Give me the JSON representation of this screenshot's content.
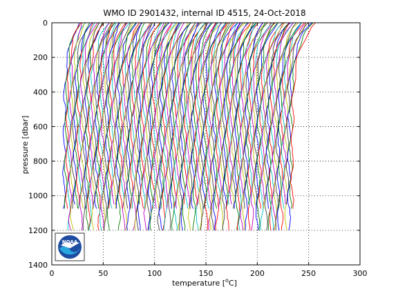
{
  "chart_data": {
    "type": "line",
    "title": "WMO ID 2901432, internal ID 4515, 24-Oct-2018",
    "xlabel": "temperature [",
    "xlabel_unit": "o",
    "xlabel_suffix": "C]",
    "ylabel": "pressure [dbar]",
    "xlim": [
      0,
      300
    ],
    "ylim": [
      0,
      1400
    ],
    "y_reversed": true,
    "grid": true,
    "xticks": [
      "0",
      "50",
      "100",
      "150",
      "200",
      "250",
      "300"
    ],
    "yticks": [
      "0",
      "200",
      "400",
      "600",
      "800",
      "1000",
      "1200",
      "1400"
    ],
    "series_colors": [
      "#0000ff",
      "#008000",
      "#ff0000",
      "#00bfbf",
      "#bf00bf",
      "#bfbf00",
      "#404040"
    ],
    "profiles": {
      "count": 150,
      "first_deep_temperature": 12,
      "last_deep_temperature": 234,
      "first_surface_temperature": 27,
      "last_surface_temperature": 255,
      "max_pressure": 1200
    }
  },
  "logo": {
    "text": "NOAA",
    "icon": "noaa-logo-icon"
  }
}
